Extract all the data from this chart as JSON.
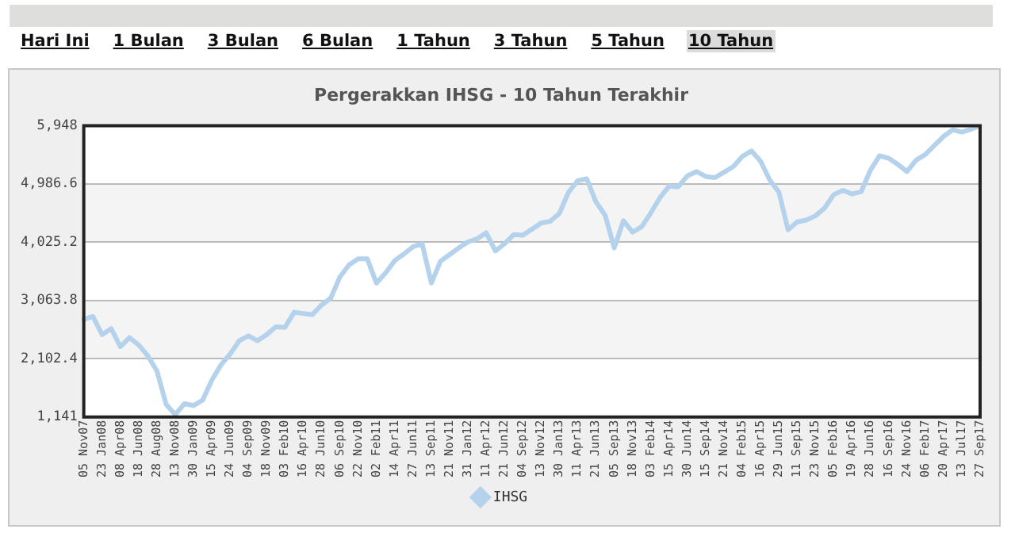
{
  "chart_data": {
    "type": "line",
    "title": "Pergerakkan IHSG - 10 Tahun Terakhir",
    "annotations": [
      "Hari Ini",
      "1 Bulan",
      "3 Bulan",
      "6 Bulan",
      "1 Tahun",
      "3 Tahun",
      "5 Tahun",
      "10 Tahun"
    ],
    "categories": [
      "05 Nov07",
      null,
      "23 Jan08",
      null,
      "08 Apr08",
      null,
      "18 Jun08",
      null,
      "28 Aug08",
      null,
      "13 Nov08",
      null,
      "30 Jan09",
      null,
      "15 Apr09",
      null,
      "24 Jun09",
      null,
      "04 Sep09",
      null,
      "18 Nov09",
      null,
      "03 Feb10",
      null,
      "16 Apr10",
      null,
      "28 Jun10",
      null,
      "06 Sep10",
      null,
      "22 Nov10",
      null,
      "02 Feb11",
      null,
      "14 Apr11",
      null,
      "27 Jun11",
      null,
      "13 Sep11",
      null,
      "21 Nov11",
      null,
      "31 Jan12",
      null,
      "11 Apr12",
      null,
      "21 Jun12",
      null,
      "04 Sep12",
      null,
      "13 Nov12",
      null,
      "30 Jan13",
      null,
      "11 Apr13",
      null,
      "21 Jun13",
      null,
      "05 Sep13",
      null,
      "18 Nov13",
      null,
      "03 Feb14",
      null,
      "15 Apr14",
      null,
      "30 Jun14",
      null,
      "15 Sep14",
      null,
      "21 Nov14",
      null,
      "04 Feb15",
      null,
      "16 Apr15",
      null,
      "29 Jun15",
      null,
      "11 Sep15",
      null,
      "23 Nov15",
      null,
      "05 Feb16",
      null,
      "19 Apr16",
      null,
      "28 Jun16",
      null,
      "16 Sep16",
      null,
      "24 Nov16",
      null,
      "06 Feb17",
      null,
      "20 Apr17",
      null,
      "13 Jul17",
      null,
      "27 Sep17"
    ],
    "ylim": [
      1141,
      5948
    ],
    "yticks": [
      {
        "value": 1141,
        "label": "1,141"
      },
      {
        "value": 2102.4,
        "label": "2,102.4"
      },
      {
        "value": 3063.8,
        "label": "3,063.8"
      },
      {
        "value": 4025.2,
        "label": "4,025.2"
      },
      {
        "value": 4986.6,
        "label": "4,986.6"
      },
      {
        "value": 5948,
        "label": "5,948"
      }
    ],
    "grid": "y",
    "legend": "bottom",
    "marker": "none",
    "line_style": "solid",
    "series": [
      {
        "name": "IHSG",
        "color": "#b4d2ec",
        "values": [
          2750,
          2800,
          2500,
          2600,
          2300,
          2450,
          2330,
          2150,
          1900,
          1350,
          1180,
          1360,
          1330,
          1420,
          1750,
          2000,
          2180,
          2400,
          2480,
          2400,
          2500,
          2630,
          2620,
          2870,
          2850,
          2830,
          2990,
          3100,
          3450,
          3650,
          3750,
          3750,
          3350,
          3520,
          3720,
          3830,
          3950,
          4000,
          3350,
          3710,
          3820,
          3930,
          4030,
          4080,
          4180,
          3880,
          4000,
          4150,
          4140,
          4240,
          4340,
          4370,
          4500,
          4850,
          5040,
          5070,
          4690,
          4470,
          3930,
          4380,
          4190,
          4280,
          4510,
          4760,
          4950,
          4940,
          5120,
          5190,
          5110,
          5090,
          5180,
          5270,
          5440,
          5530,
          5360,
          5050,
          4850,
          4230,
          4360,
          4390,
          4460,
          4590,
          4810,
          4880,
          4820,
          4860,
          5210,
          5450,
          5410,
          5310,
          5190,
          5380,
          5470,
          5620,
          5770,
          5880,
          5840,
          5890,
          5948
        ]
      }
    ]
  }
}
